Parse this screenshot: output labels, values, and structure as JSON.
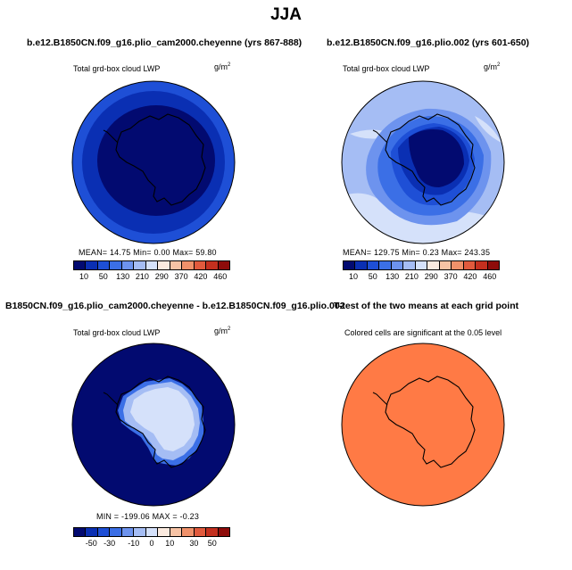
{
  "main_title": "JJA",
  "panels": [
    {
      "title": "b.e12.B1850CN.f09_g16.plio_cam2000.cheyenne (yrs 867-888)",
      "subtitle": "Total grd-box cloud LWP",
      "unit": "g/m",
      "unit_sup": "2",
      "stats": "MEAN=  14.75  Min=    0.00  Max=   59.80",
      "colorbar_labels": [
        "10",
        "50",
        "130",
        "210",
        "290",
        "370",
        "420",
        "460"
      ]
    },
    {
      "title": "b.e12.B1850CN.f09_g16.plio.002 (yrs 601-650)",
      "subtitle": "Total grd-box cloud LWP",
      "unit": "g/m",
      "unit_sup": "2",
      "stats": "MEAN= 129.75  Min=    0.23  Max=  243.35",
      "colorbar_labels": [
        "10",
        "50",
        "130",
        "210",
        "290",
        "370",
        "420",
        "460"
      ]
    },
    {
      "title": "B1850CN.f09_g16.plio_cam2000.cheyenne - b.e12.B1850CN.f09_g16.plio.002",
      "subtitle": "Total grd-box cloud LWP",
      "unit": "g/m",
      "unit_sup": "2",
      "stats": "MIN = -199.06  MAX =  -0.23",
      "colorbar_labels": [
        "-50",
        "-30",
        "-10",
        "0",
        "10",
        "30",
        "50"
      ]
    },
    {
      "title": "T-test of the two means at each grid point",
      "subtitle": "Colored cells are significant at the 0.05 level"
    }
  ],
  "colors": {
    "abs_scale": [
      "#020a70",
      "#0a2fb3",
      "#1e4fd6",
      "#3b6fe6",
      "#6d93ee",
      "#a5bdf4",
      "#d5e1fa",
      "#fbeadf",
      "#f7c3a5",
      "#f0916a",
      "#e15a3d",
      "#c4301f",
      "#8e0c0a"
    ],
    "diff_scale": [
      "#020a70",
      "#0a2fb3",
      "#1e4fd6",
      "#3b6fe6",
      "#6d93ee",
      "#a5bdf4",
      "#d5e1fa",
      "#fbeadf",
      "#f7c3a5",
      "#f0916a",
      "#e15a3d",
      "#c4301f",
      "#8e0c0a"
    ],
    "ttest_fill": "#ff7a45",
    "coastline": "#000000"
  }
}
